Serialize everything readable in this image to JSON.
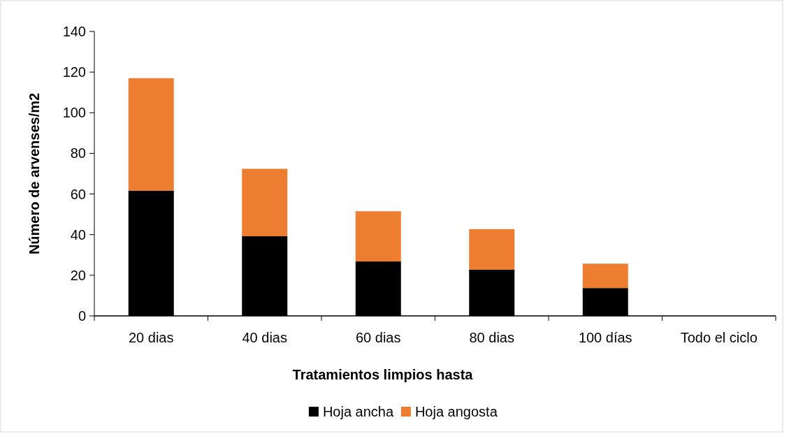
{
  "chart_data": {
    "type": "bar",
    "stacked": true,
    "xlabel": "Tratamientos limpios hasta",
    "ylabel": "Número de arvenses/m2",
    "categories": [
      "20 dias",
      "40 dias",
      "60 dias",
      "80 dias",
      "100 días",
      "Todo el ciclo"
    ],
    "series": [
      {
        "name": "Hoja ancha",
        "color": "#000000",
        "values": [
          61.6,
          39.2,
          26.8,
          22.7,
          13.7,
          0
        ]
      },
      {
        "name": "Hoja angosta",
        "color": "#ed7d31",
        "values": [
          55.4,
          33.2,
          24.7,
          20.0,
          12.0,
          0
        ]
      }
    ],
    "ylim": [
      0,
      140
    ],
    "yticks": [
      0,
      20,
      40,
      60,
      80,
      100,
      120,
      140
    ],
    "grid": false,
    "legend": "bottom"
  }
}
